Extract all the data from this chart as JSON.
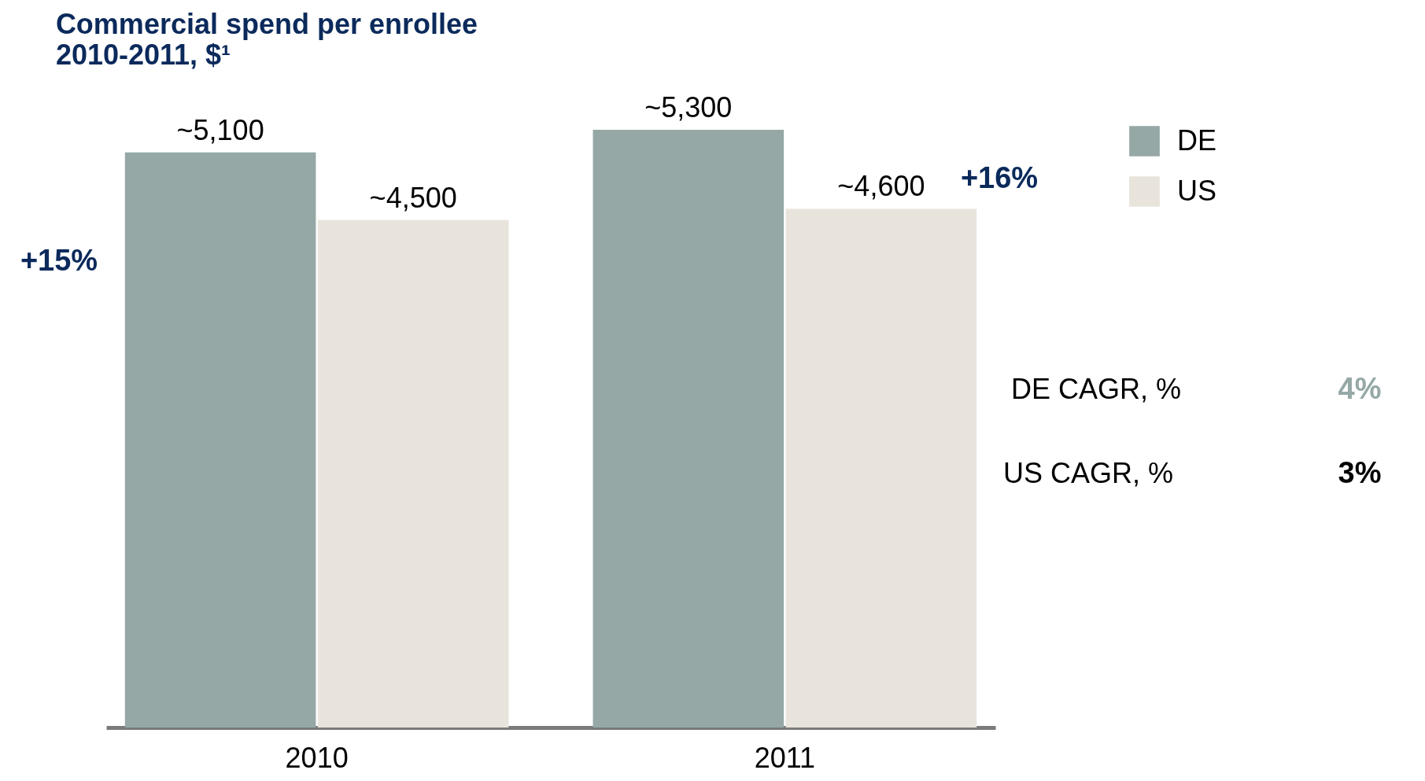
{
  "chart_data": {
    "type": "bar",
    "title": "Commercial spend per enrollee",
    "subtitle": "2010-2011, $¹",
    "categories": [
      "2010",
      "2011"
    ],
    "series": [
      {
        "name": "DE",
        "color": "#95a8a6",
        "values": [
          5100,
          5300
        ],
        "value_labels": [
          "~5,100",
          "~5,300"
        ]
      },
      {
        "name": "US",
        "color": "#e8e4dc",
        "values": [
          4500,
          4600
        ],
        "value_labels": [
          "~4,500",
          "~4,600"
        ]
      }
    ],
    "legend": "right",
    "grid": false,
    "annotations": [
      "+15%",
      "+16%",
      "DE CAGR, %",
      "4%",
      "US CAGR, %",
      "3%"
    ]
  }
}
